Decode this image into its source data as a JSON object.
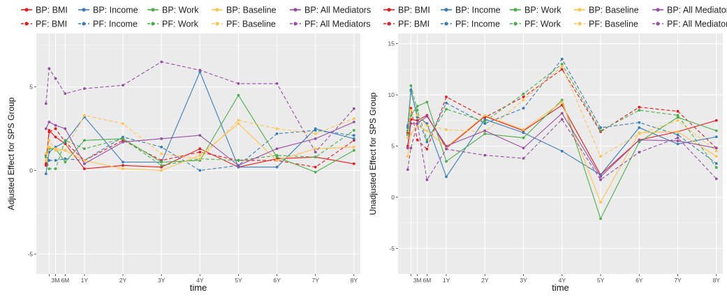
{
  "legend_rows": [
    [
      "BP: BMI",
      "BP: Income",
      "BP: Work",
      "BP: Baseline",
      "BP: All Mediators"
    ],
    [
      "PF: BMI",
      "PF: Income",
      "PF: Work",
      "PF: Baseline",
      "PF: All Mediators"
    ]
  ],
  "chart_data": [
    {
      "type": "line",
      "xlabel": "time",
      "ylabel": "Adjusted Effect for SPS Group",
      "x": [
        0,
        1,
        3,
        6,
        12,
        24,
        36,
        48,
        60,
        72,
        84,
        96
      ],
      "x_tick_labels": [
        "",
        "3M",
        "6M",
        "1Y",
        "2Y",
        "3Y",
        "4Y",
        "5Y",
        "6Y",
        "7Y",
        "8Y"
      ],
      "x_tick_values": [
        1,
        3,
        6,
        12,
        24,
        36,
        48,
        60,
        72,
        84,
        96
      ],
      "y_tick_values": [
        -5,
        0,
        5
      ],
      "y_tick_labels": [
        "-5",
        "0",
        "5"
      ],
      "ylim": [
        -6.2,
        8.2
      ],
      "grid": true,
      "legend_position": "top",
      "series": [
        {
          "name": "BP: BMI",
          "color": "#e41a1c",
          "dash": false,
          "values": [
            0.4,
            2.4,
            2.0,
            1.6,
            0.1,
            0.3,
            0.2,
            1.3,
            0.2,
            0.7,
            0.8,
            0.4
          ]
        },
        {
          "name": "PF: BMI",
          "color": "#e41a1c",
          "dash": true,
          "values": [
            0.3,
            2.3,
            2.5,
            1.7,
            0.6,
            1.8,
            0.6,
            1.1,
            0.6,
            0.6,
            0.2,
            1.8
          ]
        },
        {
          "name": "BP: Income",
          "color": "#377eb8",
          "dash": false,
          "values": [
            -0.2,
            1.1,
            1.4,
            1.7,
            3.2,
            0.5,
            0.5,
            5.9,
            0.2,
            0.2,
            2.5,
            1.9
          ]
        },
        {
          "name": "PF: Income",
          "color": "#377eb8",
          "dash": true,
          "values": [
            0.9,
            0.6,
            0.6,
            0.7,
            0.6,
            2.0,
            1.4,
            0.0,
            0.3,
            2.2,
            2.4,
            2.1
          ]
        },
        {
          "name": "BP: Work",
          "color": "#4daf4a",
          "dash": false,
          "values": [
            1.0,
            1.3,
            1.3,
            0.5,
            1.8,
            1.9,
            0.5,
            0.6,
            4.5,
            0.8,
            -0.1,
            1.2
          ]
        },
        {
          "name": "PF: Work",
          "color": "#4daf4a",
          "dash": true,
          "values": [
            0.8,
            0.1,
            0.1,
            1.8,
            1.3,
            1.9,
            0.3,
            0.7,
            0.6,
            0.9,
            0.8,
            2.4
          ]
        },
        {
          "name": "BP: Baseline",
          "color": "#fec44f",
          "dash": false,
          "values": [
            0.6,
            1.4,
            1.3,
            1.2,
            0.6,
            0.1,
            0.0,
            0.9,
            2.8,
            0.6,
            1.3,
            1.4
          ]
        },
        {
          "name": "PF: Baseline",
          "color": "#fec44f",
          "dash": true,
          "values": [
            1.0,
            1.8,
            1.2,
            1.2,
            3.3,
            2.8,
            1.0,
            0.7,
            3.0,
            2.5,
            2.2,
            3.1
          ]
        },
        {
          "name": "BP: All Mediators",
          "color": "#984ea3",
          "dash": false,
          "values": [
            2.5,
            2.9,
            2.7,
            2.5,
            0.4,
            1.7,
            1.9,
            2.1,
            0.3,
            1.3,
            1.9,
            2.9
          ]
        },
        {
          "name": "PF: All Mediators",
          "color": "#984ea3",
          "dash": true,
          "values": [
            4.0,
            6.1,
            5.5,
            4.6,
            4.9,
            5.1,
            6.5,
            6.0,
            5.2,
            5.2,
            1.1,
            3.7
          ]
        }
      ]
    },
    {
      "type": "line",
      "xlabel": "time",
      "ylabel": "Unadjusted Effect for SPS Group",
      "x": [
        0,
        1,
        3,
        6,
        12,
        24,
        36,
        48,
        60,
        72,
        84,
        96
      ],
      "x_tick_labels": [
        "",
        "3M",
        "6M",
        "1Y",
        "2Y",
        "3Y",
        "4Y",
        "5Y",
        "6Y",
        "7Y",
        "8Y"
      ],
      "x_tick_values": [
        1,
        3,
        6,
        12,
        24,
        36,
        48,
        60,
        72,
        84,
        96
      ],
      "y_tick_values": [
        -5,
        0,
        5,
        10,
        15
      ],
      "y_tick_labels": [
        "-5",
        "0",
        "5",
        "10",
        "15"
      ],
      "ylim": [
        -7.5,
        16.0
      ],
      "grid": true,
      "legend_position": "top",
      "series": [
        {
          "name": "BP: BMI",
          "color": "#e41a1c",
          "dash": false,
          "values": [
            5.0,
            7.6,
            7.5,
            8.0,
            4.8,
            7.9,
            6.5,
            9.0,
            2.2,
            5.6,
            6.4,
            7.5
          ]
        },
        {
          "name": "PF: BMI",
          "color": "#e41a1c",
          "dash": true,
          "values": [
            6.3,
            8.7,
            5.6,
            4.7,
            9.8,
            7.8,
            9.8,
            12.5,
            6.4,
            8.8,
            8.4,
            4.8
          ]
        },
        {
          "name": "BP: Income",
          "color": "#377eb8",
          "dash": false,
          "values": [
            6.8,
            10.4,
            7.9,
            7.2,
            2.0,
            7.6,
            6.3,
            4.5,
            2.2,
            6.8,
            5.2,
            5.9
          ]
        },
        {
          "name": "PF: Income",
          "color": "#377eb8",
          "dash": true,
          "values": [
            7.0,
            10.5,
            7.8,
            5.4,
            9.2,
            7.2,
            8.7,
            13.5,
            6.8,
            7.3,
            6.1,
            3.3
          ]
        },
        {
          "name": "BP: Work",
          "color": "#4daf4a",
          "dash": false,
          "values": [
            6.1,
            8.0,
            8.9,
            9.3,
            3.5,
            6.2,
            5.8,
            9.5,
            -2.1,
            5.4,
            7.8,
            6.5
          ]
        },
        {
          "name": "PF: Work",
          "color": "#4daf4a",
          "dash": true,
          "values": [
            6.5,
            10.9,
            8.5,
            5.6,
            8.6,
            7.4,
            10.1,
            13.0,
            6.5,
            8.5,
            8.0,
            2.9
          ]
        },
        {
          "name": "BP: Baseline",
          "color": "#fec44f",
          "dash": false,
          "values": [
            4.0,
            6.2,
            7.0,
            6.5,
            4.9,
            8.0,
            6.6,
            9.3,
            -0.5,
            6.3,
            6.4,
            4.0
          ]
        },
        {
          "name": "PF: Baseline",
          "color": "#fec44f",
          "dash": true,
          "values": [
            5.8,
            8.5,
            8.0,
            7.0,
            6.6,
            6.4,
            9.5,
            12.8,
            4.0,
            6.2,
            7.5,
            4.5
          ]
        },
        {
          "name": "BP: All Mediators",
          "color": "#984ea3",
          "dash": false,
          "values": [
            4.8,
            7.2,
            7.2,
            7.9,
            5.0,
            6.5,
            4.8,
            8.2,
            2.0,
            5.6,
            5.5,
            4.8
          ]
        },
        {
          "name": "PF: All Mediators",
          "color": "#984ea3",
          "dash": true,
          "values": [
            2.7,
            4.8,
            7.2,
            1.7,
            4.7,
            4.1,
            3.8,
            7.6,
            1.7,
            4.4,
            5.8,
            1.8
          ]
        }
      ]
    }
  ]
}
